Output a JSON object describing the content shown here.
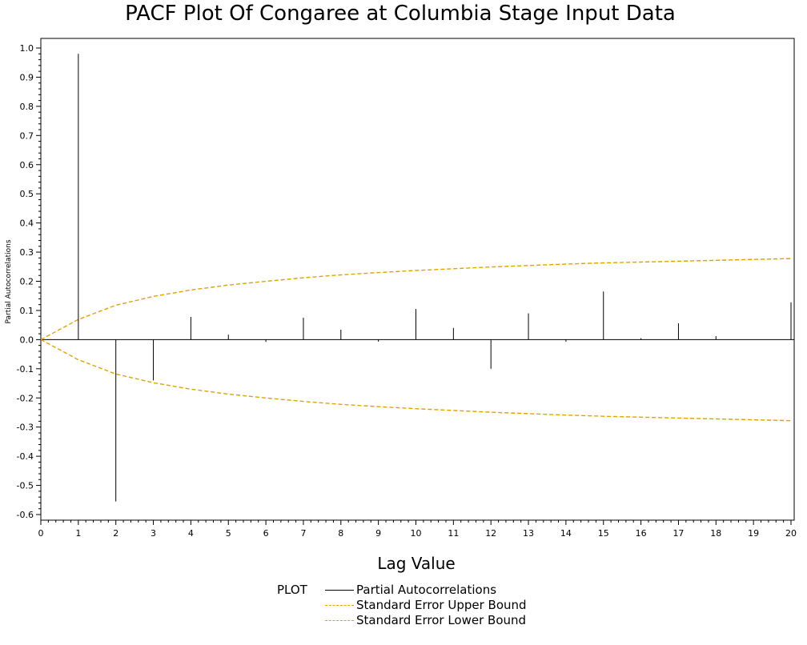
{
  "chart_data": {
    "type": "bar",
    "title": "PACF Plot Of Congaree at Columbia Stage Input Data",
    "xlabel": "Lag Value",
    "ylabel": "Partial Autocorrelations",
    "xlim": [
      0,
      20
    ],
    "ylim": [
      -0.62,
      1.02
    ],
    "xticks": [
      "0",
      "1",
      "2",
      "3",
      "4",
      "5",
      "6",
      "7",
      "8",
      "9",
      "10",
      "11",
      "12",
      "13",
      "14",
      "15",
      "16",
      "17",
      "18",
      "19",
      "20"
    ],
    "yticks": [
      "-0.6",
      "-0.5",
      "-0.4",
      "-0.3",
      "-0.2",
      "-0.1",
      "0.0",
      "0.1",
      "0.2",
      "0.3",
      "0.4",
      "0.5",
      "0.6",
      "0.7",
      "0.8",
      "0.9",
      "1.0"
    ],
    "grid": false,
    "legend_position": "bottom",
    "legend_title": "PLOT",
    "series": [
      {
        "name": "Partial Autocorrelations",
        "color": "#000000",
        "style": "needle",
        "x": [
          1,
          2,
          3,
          4,
          5,
          6,
          7,
          8,
          9,
          10,
          11,
          12,
          13,
          14,
          15,
          16,
          17,
          18,
          19,
          20
        ],
        "values": [
          0.98,
          -0.555,
          -0.14,
          0.078,
          0.017,
          -0.008,
          0.075,
          0.034,
          -0.007,
          0.105,
          0.04,
          -0.1,
          0.09,
          -0.007,
          0.165,
          0.005,
          0.056,
          0.012,
          0.0,
          0.128
        ]
      },
      {
        "name": "Standard Error Upper Bound",
        "color": "#E1A200",
        "style": "dashed",
        "x": [
          0,
          1,
          2,
          3,
          4,
          5,
          6,
          7,
          8,
          9,
          10,
          11,
          12,
          13,
          14,
          15,
          16,
          17,
          18,
          19,
          20
        ],
        "values": [
          0.0,
          0.069,
          0.118,
          0.148,
          0.17,
          0.187,
          0.2,
          0.212,
          0.222,
          0.23,
          0.237,
          0.243,
          0.249,
          0.254,
          0.259,
          0.263,
          0.266,
          0.269,
          0.272,
          0.275,
          0.278
        ]
      },
      {
        "name": "Standard Error Lower Bound",
        "color": "#E1A200",
        "style": "dashed",
        "x": [
          0,
          1,
          2,
          3,
          4,
          5,
          6,
          7,
          8,
          9,
          10,
          11,
          12,
          13,
          14,
          15,
          16,
          17,
          18,
          19,
          20
        ],
        "values": [
          0.0,
          -0.069,
          -0.118,
          -0.148,
          -0.17,
          -0.187,
          -0.2,
          -0.212,
          -0.222,
          -0.23,
          -0.237,
          -0.243,
          -0.249,
          -0.254,
          -0.259,
          -0.263,
          -0.266,
          -0.269,
          -0.272,
          -0.275,
          -0.278
        ]
      }
    ]
  }
}
